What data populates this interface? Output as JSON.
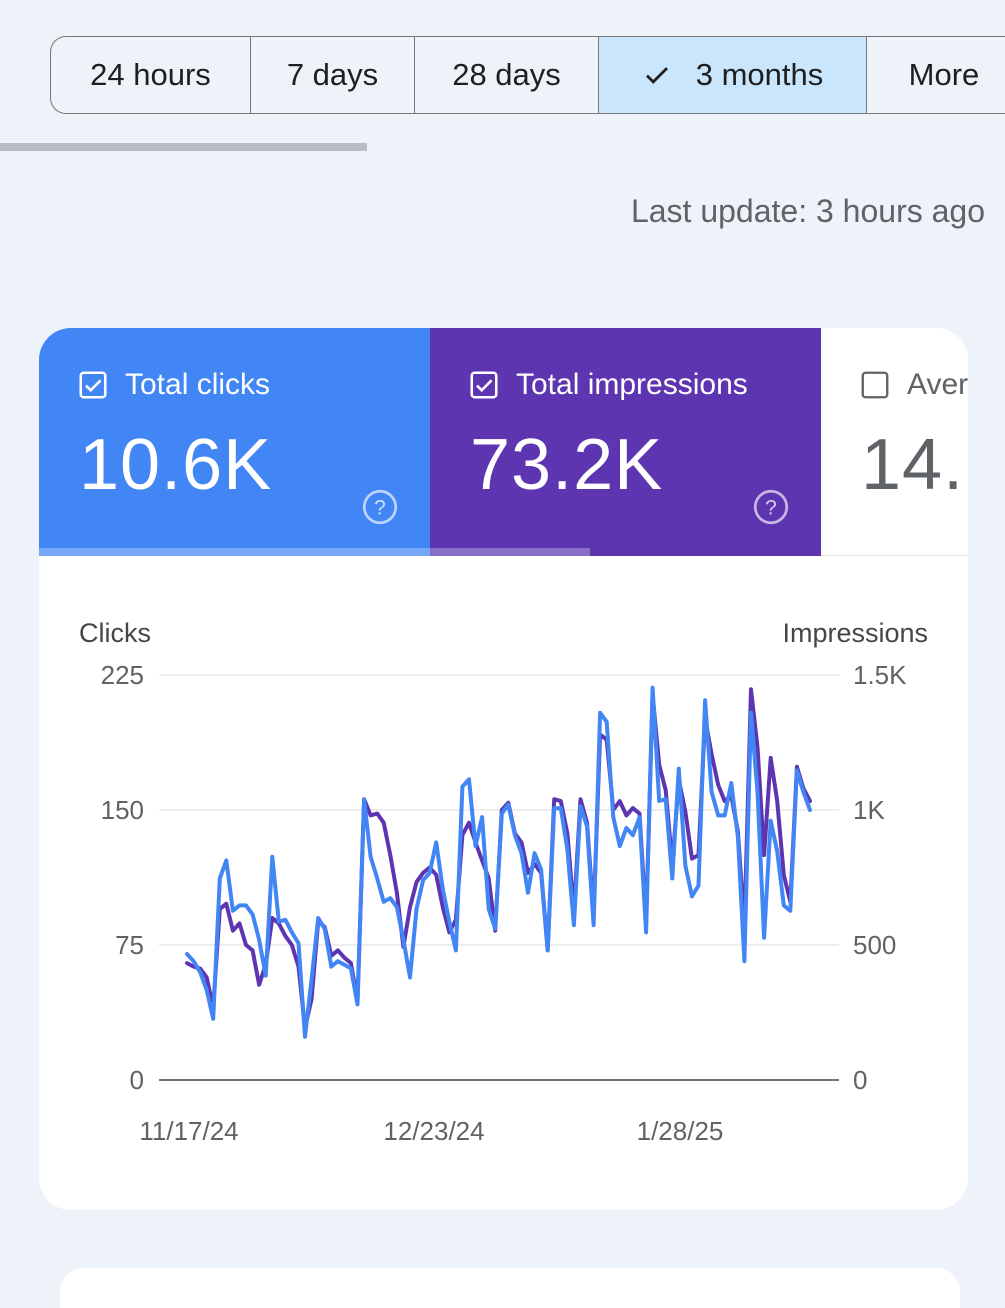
{
  "range": {
    "options": [
      "24 hours",
      "7 days",
      "28 days",
      "3 months",
      "More"
    ],
    "selected_index": 3
  },
  "last_update": "Last update: 3 hours ago",
  "metrics": {
    "clicks": {
      "label": "Total clicks",
      "value": "10.6K",
      "checked": true,
      "color": "#4285f4"
    },
    "impressions": {
      "label": "Total impressions",
      "value": "73.2K",
      "checked": true,
      "color": "#5e35b1"
    },
    "average": {
      "label": "Aver",
      "value": "14.",
      "checked": false
    }
  },
  "chart_data": {
    "type": "line",
    "y_left_label": "Clicks",
    "y_right_label": "Impressions",
    "y_left_ticks": [
      "0",
      "75",
      "150",
      "225"
    ],
    "y_right_ticks": [
      "0",
      "500",
      "1K",
      "1.5K"
    ],
    "x_tick_labels": [
      "11/17/24",
      "12/23/24",
      "1/28/25"
    ],
    "ylim_left": [
      0,
      225
    ],
    "ylim_right": [
      0,
      1500
    ],
    "series": [
      {
        "name": "Clicks",
        "axis": "left",
        "color": "#4285f4",
        "values": [
          70,
          66,
          60,
          50,
          34,
          112,
          122,
          94,
          97,
          97,
          92,
          78,
          58,
          124,
          88,
          89,
          82,
          76,
          24,
          56,
          90,
          84,
          63,
          66,
          64,
          62,
          42,
          156,
          124,
          112,
          99,
          101,
          96,
          78,
          57,
          95,
          111,
          115,
          132,
          106,
          88,
          72,
          163,
          167,
          130,
          146,
          95,
          84,
          148,
          153,
          136,
          126,
          104,
          126,
          117,
          72,
          151,
          151,
          128,
          86,
          152,
          141,
          86,
          204,
          199,
          146,
          130,
          140,
          136,
          146,
          82,
          218,
          155,
          156,
          112,
          173,
          119,
          102,
          108,
          211,
          160,
          147,
          147,
          165,
          135,
          66,
          204,
          160,
          79,
          144,
          127,
          97,
          94,
          172,
          160,
          150
        ]
      },
      {
        "name": "Impressions",
        "axis": "right",
        "color": "#5e35b1",
        "values": [
          433,
          420,
          413,
          380,
          267,
          633,
          653,
          553,
          580,
          500,
          480,
          353,
          427,
          600,
          580,
          533,
          500,
          420,
          193,
          300,
          587,
          567,
          460,
          480,
          453,
          433,
          293,
          1040,
          980,
          987,
          953,
          833,
          693,
          493,
          640,
          733,
          767,
          787,
          760,
          640,
          547,
          593,
          907,
          953,
          880,
          813,
          747,
          553,
          1000,
          1027,
          913,
          880,
          767,
          800,
          767,
          480,
          1040,
          1033,
          913,
          620,
          1040,
          953,
          613,
          1280,
          1260,
          1000,
          1033,
          980,
          1007,
          987,
          587,
          1427,
          1167,
          1073,
          800,
          1113,
          993,
          820,
          833,
          1340,
          1207,
          1093,
          1033,
          1053,
          920,
          567,
          1447,
          1233,
          833,
          1193,
          1033,
          760,
          660,
          1160,
          1080,
          1033
        ]
      }
    ]
  }
}
